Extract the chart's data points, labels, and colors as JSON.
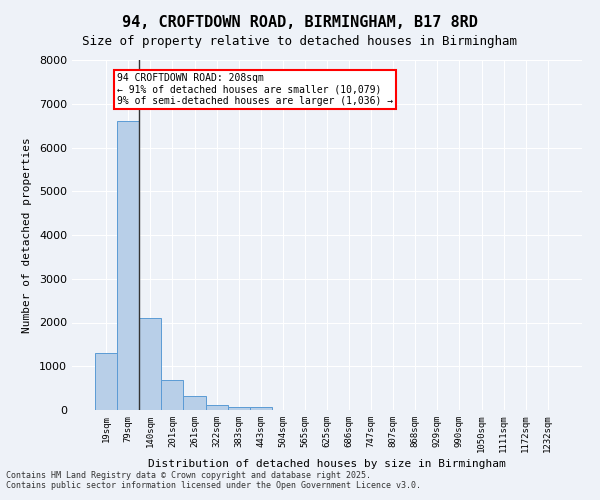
{
  "title_line1": "94, CROFTDOWN ROAD, BIRMINGHAM, B17 8RD",
  "title_line2": "Size of property relative to detached houses in Birmingham",
  "xlabel": "Distribution of detached houses by size in Birmingham",
  "ylabel": "Number of detached properties",
  "categories": [
    "19sqm",
    "79sqm",
    "140sqm",
    "201sqm",
    "261sqm",
    "322sqm",
    "383sqm",
    "443sqm",
    "504sqm",
    "565sqm",
    "625sqm",
    "686sqm",
    "747sqm",
    "807sqm",
    "868sqm",
    "929sqm",
    "990sqm",
    "1050sqm",
    "1111sqm",
    "1172sqm",
    "1232sqm"
  ],
  "values": [
    1300,
    6600,
    2100,
    680,
    310,
    120,
    70,
    60,
    0,
    0,
    0,
    0,
    0,
    0,
    0,
    0,
    0,
    0,
    0,
    0,
    0
  ],
  "bar_color": "#b8cfe8",
  "bar_edge_color": "#5b9bd5",
  "property_size": 208,
  "property_label": "94 CROFTDOWN ROAD: 208sqm",
  "pct_smaller": 91,
  "n_smaller": 10079,
  "pct_larger": 9,
  "n_larger": 1036,
  "vline_bin_index": 2,
  "annotation_box_color": "#ff0000",
  "background_color": "#eef2f8",
  "plot_bg_color": "#eef2f8",
  "grid_color": "#ffffff",
  "ylim": [
    0,
    8000
  ],
  "yticks": [
    0,
    1000,
    2000,
    3000,
    4000,
    5000,
    6000,
    7000,
    8000
  ],
  "footer_line1": "Contains HM Land Registry data © Crown copyright and database right 2025.",
  "footer_line2": "Contains public sector information licensed under the Open Government Licence v3.0."
}
